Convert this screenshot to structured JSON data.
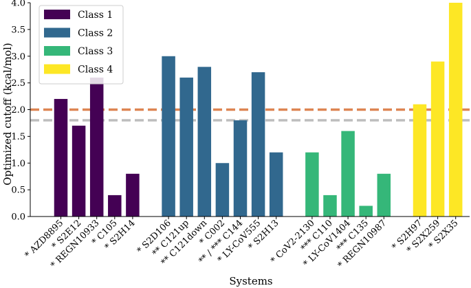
{
  "chart_data": {
    "type": "bar",
    "xlabel": "Systems",
    "ylabel": "Optimized cutoff (kcal/mol)",
    "ylim": [
      0,
      4.0
    ],
    "yticks": [
      "0.0",
      "0.5",
      "1.0",
      "1.5",
      "2.0",
      "2.5",
      "3.0",
      "3.5",
      "4.0"
    ],
    "grid": false,
    "legend_position": "top-left",
    "reference_lines": [
      {
        "value": 2.0,
        "color": "#dd8452",
        "style": "dashed"
      },
      {
        "value": 1.8,
        "color": "#bdbdbd",
        "style": "dashed"
      }
    ],
    "series": [
      {
        "name": "Class 1",
        "color": "#440154",
        "categories": [
          "* AZD8895",
          "* S2E12",
          "* REGN10933",
          "* C105",
          "* S2H14"
        ],
        "values": [
          2.2,
          1.7,
          2.6,
          0.4,
          0.8
        ]
      },
      {
        "name": "Class 2",
        "color": "#31688e",
        "categories": [
          "* S2D106",
          "** C121up",
          "** C121down",
          "* C002",
          "** / *** C144",
          "* LY-CoV555",
          "* S2H13"
        ],
        "values": [
          3.0,
          2.6,
          2.8,
          1.0,
          1.8,
          2.7,
          1.2
        ]
      },
      {
        "name": "Class 3",
        "color": "#35b779",
        "categories": [
          "* CoV2-2130",
          "*** C110",
          "* LY-CoV1404",
          "*** C135",
          "* REGN10987"
        ],
        "values": [
          1.2,
          0.4,
          1.6,
          0.2,
          0.8
        ]
      },
      {
        "name": "Class 4",
        "color": "#fde725",
        "categories": [
          "* S2H97",
          "* S2X259",
          "* S2X35"
        ],
        "values": [
          2.1,
          2.9,
          4.0
        ]
      }
    ]
  }
}
